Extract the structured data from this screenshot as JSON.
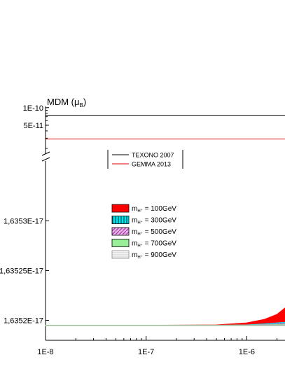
{
  "chart_data": {
    "type": "area",
    "ylabel_main": "MDM (",
    "ylabel_symbol": "μ",
    "ylabel_sub": "B",
    "ylabel_close": ")",
    "xscale": "log",
    "xlim": [
      1e-08,
      2.4e-06
    ],
    "x_ticks": [
      "1E-8",
      "1E-7",
      "1E-6"
    ],
    "x_tick_values": [
      1e-08,
      1e-07,
      1e-06
    ],
    "broken_y_axis": true,
    "upper_panel": {
      "ylim": [
        2e-11,
        1.05e-10
      ],
      "y_ticks": [
        "1E-10",
        "5E-11"
      ],
      "y_tick_values": [
        1e-10,
        5e-11
      ]
    },
    "lower_panel": {
      "ylim": [
        1.63518e-17,
        1.63536e-17
      ],
      "y_ticks": [
        "1,6353E-17",
        "1,63525E-17",
        "1,6352E-17"
      ],
      "y_tick_values": [
        1.6353e-17,
        1.63525e-17,
        1.6352e-17
      ]
    },
    "experimental_limits": [
      {
        "name": "TEXONO 2007",
        "color": "#000000",
        "value": 7.4e-11
      },
      {
        "name": "GEMMA 2013",
        "color": "#e00000",
        "value": 2.9e-11
      }
    ],
    "series": [
      {
        "name_prefix": "m",
        "name_sub": "H⁺",
        "name_suffix": " = 100GeV",
        "fill": "#ff0000",
        "pattern": "solid",
        "x": [
          1e-08,
          1e-07,
          5e-07,
          1e-06,
          1.5e-06,
          2e-06,
          2.4e-06
        ],
        "y_low": [
          1.635195e-17,
          1.635195e-17,
          1.635195e-17,
          1.635196e-17,
          1.635197e-17,
          1.635198e-17,
          1.635198e-17
        ],
        "y_high": [
          1.635195e-17,
          1.635195e-17,
          1.6351955e-17,
          1.6351975e-17,
          1.635201e-17,
          1.635206e-17,
          1.6352125e-17
        ]
      },
      {
        "name_prefix": "m",
        "name_sub": "H⁺",
        "name_suffix": " = 300GeV",
        "fill": "#00e5ee",
        "pattern": "vertical",
        "x": [
          1e-08,
          1e-07,
          5e-07,
          1e-06,
          1.5e-06,
          2e-06,
          2.4e-06
        ],
        "y_low": [
          1.635195e-17,
          1.635195e-17,
          1.635195e-17,
          1.635195e-17,
          1.635196e-17,
          1.635196e-17,
          1.635196e-17
        ],
        "y_high": [
          1.635195e-17,
          1.635195e-17,
          1.635195e-17,
          1.6351955e-17,
          1.6351965e-17,
          1.6351975e-17,
          1.635198e-17
        ]
      },
      {
        "name_prefix": "m",
        "name_sub": "H⁺",
        "name_suffix": " = 500GeV",
        "fill": "#cc66cc",
        "pattern": "diagonal",
        "x": [
          1e-08,
          1e-07,
          5e-07,
          1e-06,
          1.5e-06,
          2e-06,
          2.4e-06
        ],
        "y_low": [
          1.635195e-17,
          1.635195e-17,
          1.635195e-17,
          1.635195e-17,
          1.635195e-17,
          1.635195e-17,
          1.635196e-17
        ],
        "y_high": [
          1.635195e-17,
          1.635195e-17,
          1.635195e-17,
          1.6351953e-17,
          1.6351958e-17,
          1.6351964e-17,
          1.635197e-17
        ]
      },
      {
        "name_prefix": "m",
        "name_sub": "H⁺",
        "name_suffix": " = 700GeV",
        "fill": "#99ee99",
        "pattern": "solid",
        "x": [
          1e-08,
          1e-07,
          5e-07,
          1e-06,
          1.5e-06,
          2e-06,
          2.4e-06
        ],
        "y_low": [
          1.6351948e-17,
          1.6351948e-17,
          1.6351948e-17,
          1.6351948e-17,
          1.6351948e-17,
          1.6351948e-17,
          1.6351948e-17
        ],
        "y_high": [
          1.6351952e-17,
          1.6351952e-17,
          1.6351952e-17,
          1.6351953e-17,
          1.6351955e-17,
          1.6351958e-17,
          1.635196e-17
        ]
      },
      {
        "name_prefix": "m",
        "name_sub": "H⁺",
        "name_suffix": " = 900GeV",
        "fill": "#ffffff",
        "pattern": "horizontal",
        "x": [
          1e-08,
          1e-07,
          5e-07,
          1e-06,
          1.5e-06,
          2e-06,
          2.4e-06
        ],
        "y_low": [
          1.635195e-17,
          1.635195e-17,
          1.635195e-17,
          1.635195e-17,
          1.635195e-17,
          1.635195e-17,
          1.635195e-17
        ],
        "y_high": [
          1.635195e-17,
          1.635195e-17,
          1.635195e-17,
          1.635195e-17,
          1.6351952e-17,
          1.6351954e-17,
          1.6351955e-17
        ]
      }
    ]
  }
}
